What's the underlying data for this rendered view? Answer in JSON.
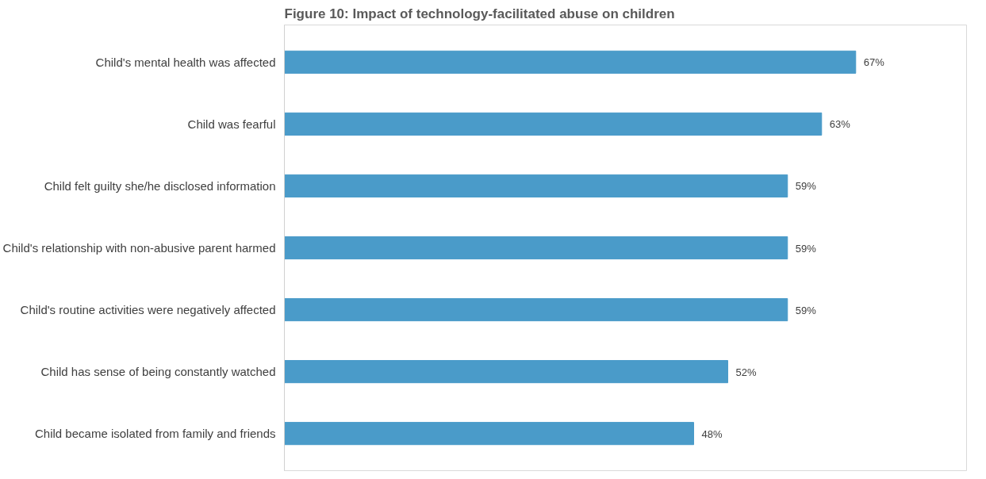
{
  "chart_data": {
    "type": "bar",
    "orientation": "horizontal",
    "title": "Figure 10: Impact of technology-facilitated abuse on children",
    "categories": [
      "Child's mental health was affected",
      "Child was fearful",
      "Child felt guilty she/he disclosed information",
      "Child's relationship with non-abusive parent harmed",
      "Child's routine activities were negatively affected",
      "Child has sense of being constantly watched",
      "Child became isolated from family and friends"
    ],
    "values": [
      67,
      63,
      59,
      59,
      59,
      52,
      48
    ],
    "value_labels": [
      "67%",
      "63%",
      "59%",
      "59%",
      "59%",
      "52%",
      "48%"
    ],
    "color": "#4a9bc9",
    "xlim": [
      0,
      80
    ],
    "tick_labels": "y",
    "grid": false
  }
}
